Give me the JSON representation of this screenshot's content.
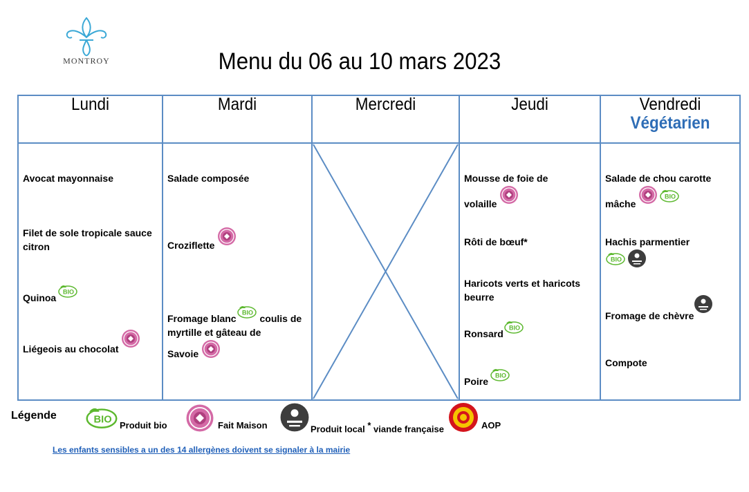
{
  "logo": {
    "text": "MONTROY"
  },
  "title": "Menu du 06 au 10 mars 2023",
  "days": [
    {
      "name": "Lundi"
    },
    {
      "name": "Mardi"
    },
    {
      "name": "Mercredi"
    },
    {
      "name": "Jeudi"
    },
    {
      "name": "Vendredi",
      "subtitle": "Végétarien"
    }
  ],
  "menu": {
    "lundi": [
      {
        "text": "Avocat mayonnaise",
        "badges": []
      },
      {
        "text": "Filet de sole tropicale sauce citron",
        "badges": []
      },
      {
        "text": "Quinoa",
        "badges": [
          "bio"
        ]
      },
      {
        "text": "Liégeois au chocolat",
        "badges": [
          "fait-maison"
        ]
      }
    ],
    "mardi": [
      {
        "text": "Salade composée",
        "badges": []
      },
      {
        "text": "Croziflette",
        "badges": [
          "fait-maison"
        ]
      },
      {
        "text_a": "Fromage blanc",
        "text_b": "coulis de myrtille et gâteau de",
        "text_c": "Savoie",
        "badges": [
          "bio",
          "fait-maison"
        ]
      }
    ],
    "jeudi": [
      {
        "text_a": "Mousse de foie de",
        "text_b": "volaille",
        "badges": [
          "fait-maison"
        ]
      },
      {
        "text": "Rôti de bœuf*",
        "badges": []
      },
      {
        "text": "Haricots verts et haricots beurre",
        "badges": []
      },
      {
        "text": "Ronsard",
        "badges": [
          "bio"
        ]
      },
      {
        "text": "Poire",
        "badges": [
          "bio"
        ]
      }
    ],
    "vendredi": [
      {
        "text_a": "Salade de chou carotte",
        "text_b": "mâche",
        "badges": [
          "fait-maison",
          "bio"
        ]
      },
      {
        "text": "Hachis parmentier",
        "badges": [
          "bio",
          "produit-local"
        ]
      },
      {
        "text": "Fromage de chèvre",
        "badges": [
          "produit-local"
        ]
      },
      {
        "text": "Compote",
        "badges": []
      }
    ]
  },
  "legend": {
    "title": "Légende",
    "items": [
      {
        "icon": "bio",
        "label": "Produit bio"
      },
      {
        "icon": "fait-maison",
        "label": "Fait Maison"
      },
      {
        "icon": "produit-local",
        "label": "Produit local",
        "asterisk": "*",
        "label2": "viande française"
      },
      {
        "icon": "aop",
        "label": "AOP"
      }
    ]
  },
  "notice": "Les enfants sensibles a un des 14 allergènes doivent se signaler à la mairie",
  "colors": {
    "grid": "#5b8cc4",
    "vegetarian": "#2e6db6",
    "bio": "#5cb82e",
    "fait_maison": "#b0407f",
    "local": "#3d3d3d",
    "aop": "#d4141c",
    "notice": "#1f5fb8"
  }
}
